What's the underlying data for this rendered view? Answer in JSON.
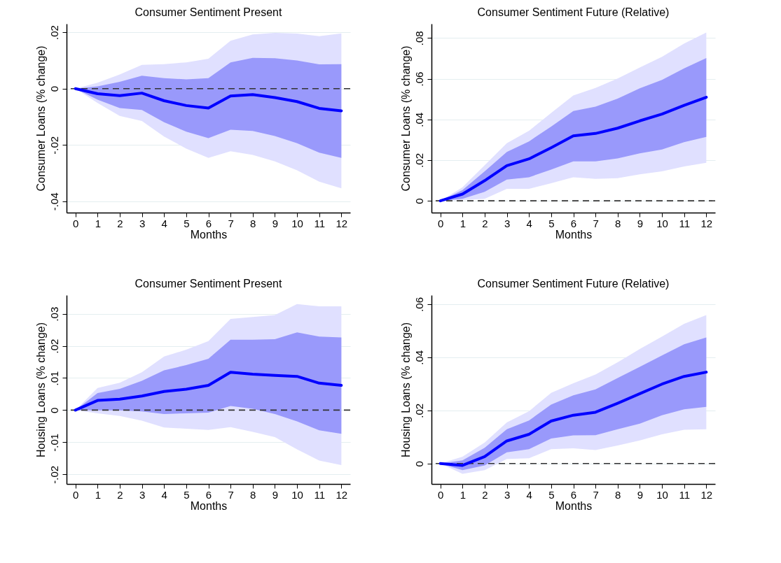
{
  "chart_data": [
    {
      "type": "line",
      "title": "Consumer Sentiment Present",
      "xlabel": "Months",
      "ylabel": "Consumer Loans (% change)",
      "x": [
        0,
        1,
        2,
        3,
        4,
        5,
        6,
        7,
        8,
        9,
        10,
        11,
        12
      ],
      "xlim": [
        -0.4,
        12.4
      ],
      "xticks": [
        0,
        1,
        2,
        3,
        4,
        5,
        6,
        7,
        8,
        9,
        10,
        11,
        12
      ],
      "ylim": [
        -0.044,
        0.023
      ],
      "yticks": [
        {
          "value": -0.04,
          "label": "-.04"
        },
        {
          "value": -0.02,
          "label": "-.02"
        },
        {
          "value": 0,
          "label": "0"
        },
        {
          "value": 0.02,
          "label": ".02"
        }
      ],
      "grid": "y",
      "ref_lines": [
        {
          "axis": "y",
          "value": 0,
          "color": "#333333",
          "line_style": "dashed"
        }
      ],
      "series": [
        {
          "color": "#e0e0ff",
          "values": [
            null,
            null,
            null,
            null,
            null,
            null,
            null,
            null,
            null,
            null,
            null,
            null,
            null
          ],
          "lower": [
            0,
            -0.0051,
            -0.0097,
            -0.0115,
            -0.017,
            -0.0213,
            -0.0246,
            -0.0222,
            -0.0235,
            -0.0258,
            -0.029,
            -0.033,
            -0.0354
          ],
          "upper": [
            0,
            0.0021,
            0.005,
            0.0084,
            0.0087,
            0.0093,
            0.0106,
            0.017,
            0.0192,
            0.0198,
            0.0195,
            0.0186,
            0.0196
          ]
        },
        {
          "color": "#9999fb",
          "values": [
            null,
            null,
            null,
            null,
            null,
            null,
            null,
            null,
            null,
            null,
            null,
            null,
            null
          ],
          "lower": [
            0,
            -0.0039,
            -0.0069,
            -0.0076,
            -0.0119,
            -0.0153,
            -0.0176,
            -0.0146,
            -0.015,
            -0.0168,
            -0.0194,
            -0.0227,
            -0.0246
          ],
          "upper": [
            0,
            0.0008,
            0.0024,
            0.0046,
            0.0037,
            0.0033,
            0.0037,
            0.0093,
            0.0109,
            0.0108,
            0.01,
            0.0086,
            0.0087
          ]
        },
        {
          "color": "#0000ff",
          "values": [
            0,
            -0.0018,
            -0.0025,
            -0.0016,
            -0.0043,
            -0.006,
            -0.0069,
            -0.0026,
            -0.0021,
            -0.0032,
            -0.0046,
            -0.007,
            -0.0079
          ]
        }
      ]
    },
    {
      "type": "line",
      "title": "Consumer Sentiment Future (Relative)",
      "xlabel": "Months",
      "ylabel": "Consumer Loans (% change)",
      "x": [
        0,
        1,
        2,
        3,
        4,
        5,
        6,
        7,
        8,
        9,
        10,
        11,
        12
      ],
      "xlim": [
        -0.4,
        12.4
      ],
      "xticks": [
        0,
        1,
        2,
        3,
        4,
        5,
        6,
        7,
        8,
        9,
        10,
        11,
        12
      ],
      "ylim": [
        -0.0058,
        0.087
      ],
      "yticks": [
        {
          "value": 0,
          "label": "0"
        },
        {
          "value": 0.02,
          "label": ".02"
        },
        {
          "value": 0.04,
          "label": ".04"
        },
        {
          "value": 0.06,
          "label": ".06"
        },
        {
          "value": 0.08,
          "label": ".08"
        }
      ],
      "grid": "y",
      "ref_lines": [
        {
          "axis": "y",
          "value": 0,
          "color": "#333333",
          "line_style": "dashed"
        }
      ],
      "series": [
        {
          "color": "#e0e0ff",
          "values": [
            null,
            null,
            null,
            null,
            null,
            null,
            null,
            null,
            null,
            null,
            null,
            null,
            null
          ],
          "lower": [
            0,
            0.0004,
            0.001,
            0.0059,
            0.0059,
            0.0086,
            0.0116,
            0.0108,
            0.0111,
            0.013,
            0.0145,
            0.0169,
            0.0187
          ],
          "upper": [
            0,
            0.0067,
            0.0175,
            0.0283,
            0.0344,
            0.0432,
            0.0518,
            0.0555,
            0.0601,
            0.0655,
            0.0708,
            0.0773,
            0.0827
          ]
        },
        {
          "color": "#9999fb",
          "values": [
            null,
            null,
            null,
            null,
            null,
            null,
            null,
            null,
            null,
            null,
            null,
            null,
            null
          ],
          "lower": [
            0,
            0.001,
            0.0044,
            0.0104,
            0.0116,
            0.0153,
            0.0194,
            0.0194,
            0.0208,
            0.0233,
            0.0252,
            0.0288,
            0.0314
          ],
          "upper": [
            0,
            0.0053,
            0.0145,
            0.024,
            0.0292,
            0.0365,
            0.0441,
            0.0463,
            0.0502,
            0.0553,
            0.0594,
            0.0651,
            0.0702
          ]
        },
        {
          "color": "#0000ff",
          "values": [
            0,
            0.0033,
            0.0099,
            0.0173,
            0.0206,
            0.0261,
            0.0319,
            0.0331,
            0.0357,
            0.0393,
            0.0426,
            0.0469,
            0.0509
          ]
        }
      ]
    },
    {
      "type": "line",
      "title": "Consumer Sentiment Present",
      "xlabel": "Months",
      "ylabel": "Housing Loans (% change)",
      "x": [
        0,
        1,
        2,
        3,
        4,
        5,
        6,
        7,
        8,
        9,
        10,
        11,
        12
      ],
      "xlim": [
        -0.4,
        12.4
      ],
      "xticks": [
        0,
        1,
        2,
        3,
        4,
        5,
        6,
        7,
        8,
        9,
        10,
        11,
        12
      ],
      "ylim": [
        -0.023,
        0.0358
      ],
      "yticks": [
        {
          "value": -0.02,
          "label": "-.02"
        },
        {
          "value": -0.01,
          "label": "-.01"
        },
        {
          "value": 0,
          "label": "0"
        },
        {
          "value": 0.01,
          "label": ".01"
        },
        {
          "value": 0.02,
          "label": ".02"
        },
        {
          "value": 0.03,
          "label": ".03"
        }
      ],
      "grid": "y",
      "ref_lines": [
        {
          "axis": "y",
          "value": 0,
          "color": "#333333",
          "line_style": "dashed"
        }
      ],
      "series": [
        {
          "color": "#e0e0ff",
          "values": [
            null,
            null,
            null,
            null,
            null,
            null,
            null,
            null,
            null,
            null,
            null,
            null,
            null
          ],
          "lower": [
            0,
            -0.001,
            -0.0018,
            -0.0033,
            -0.0054,
            -0.0058,
            -0.0062,
            -0.0053,
            -0.0068,
            -0.0084,
            -0.0122,
            -0.0157,
            -0.0171
          ],
          "upper": [
            0,
            0.0069,
            0.0085,
            0.0118,
            0.0167,
            0.0188,
            0.0215,
            0.0284,
            0.029,
            0.0296,
            0.033,
            0.0323,
            0.0323
          ]
        },
        {
          "color": "#9999fb",
          "values": [
            null,
            null,
            null,
            null,
            null,
            null,
            null,
            null,
            null,
            null,
            null,
            null,
            null
          ],
          "lower": [
            0,
            -0.0001,
            -0.0001,
            -0.0004,
            -0.0012,
            -0.001,
            -0.0008,
            0.0013,
            0.0004,
            -0.0012,
            -0.0035,
            -0.0063,
            -0.0074
          ],
          "upper": [
            0,
            0.0053,
            0.0066,
            0.0091,
            0.0124,
            0.014,
            0.016,
            0.0219,
            0.0219,
            0.0221,
            0.0242,
            0.0229,
            0.0226
          ]
        },
        {
          "color": "#0000ff",
          "values": [
            0,
            0.003,
            0.0034,
            0.0044,
            0.0058,
            0.0065,
            0.0077,
            0.0118,
            0.0112,
            0.0108,
            0.0105,
            0.0084,
            0.0077
          ]
        }
      ]
    },
    {
      "type": "line",
      "title": "Consumer Sentiment Future (Relative)",
      "xlabel": "Months",
      "ylabel": "Housing Loans (% change)",
      "x": [
        0,
        1,
        2,
        3,
        4,
        5,
        6,
        7,
        8,
        9,
        10,
        11,
        12
      ],
      "xlim": [
        -0.4,
        12.4
      ],
      "xticks": [
        0,
        1,
        2,
        3,
        4,
        5,
        6,
        7,
        8,
        9,
        10,
        11,
        12
      ],
      "ylim": [
        -0.0077,
        0.0634
      ],
      "yticks": [
        {
          "value": 0,
          "label": "0"
        },
        {
          "value": 0.02,
          "label": ".02"
        },
        {
          "value": 0.04,
          "label": ".04"
        },
        {
          "value": 0.06,
          "label": ".06"
        }
      ],
      "grid": "y",
      "ref_lines": [
        {
          "axis": "y",
          "value": 0,
          "color": "#333333",
          "line_style": "dashed"
        }
      ],
      "series": [
        {
          "color": "#e0e0ff",
          "values": [
            null,
            null,
            null,
            null,
            null,
            null,
            null,
            null,
            null,
            null,
            null,
            null,
            null
          ],
          "lower": [
            0,
            -0.0039,
            -0.0025,
            0.0017,
            0.002,
            0.0054,
            0.0057,
            0.0051,
            0.0068,
            0.0087,
            0.011,
            0.0127,
            0.0129
          ],
          "upper": [
            0,
            0.0026,
            0.0079,
            0.0155,
            0.0197,
            0.0266,
            0.0302,
            0.0335,
            0.0381,
            0.0431,
            0.0478,
            0.0526,
            0.0559
          ]
        },
        {
          "color": "#9999fb",
          "values": [
            null,
            null,
            null,
            null,
            null,
            null,
            null,
            null,
            null,
            null,
            null,
            null,
            null
          ],
          "lower": [
            0,
            -0.0025,
            -0.0007,
            0.0042,
            0.0054,
            0.0094,
            0.0106,
            0.0107,
            0.0129,
            0.015,
            0.0182,
            0.0204,
            0.0213
          ],
          "upper": [
            0,
            0.0012,
            0.0059,
            0.0129,
            0.0162,
            0.0222,
            0.0257,
            0.0279,
            0.0322,
            0.0364,
            0.0407,
            0.0449,
            0.0475
          ]
        },
        {
          "color": "#0000ff",
          "values": [
            0,
            -0.0007,
            0.0026,
            0.0085,
            0.011,
            0.016,
            0.0182,
            0.0193,
            0.0227,
            0.0263,
            0.0299,
            0.0328,
            0.0344
          ]
        }
      ]
    }
  ]
}
